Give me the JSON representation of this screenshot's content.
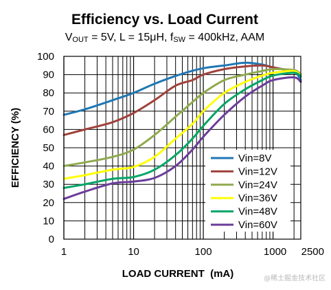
{
  "title": "Efficiency vs. Load Current",
  "subtitle": {
    "v_main": "V",
    "v_sub": "OUT",
    "mid": " = 5V, L = 15μH, f",
    "f_sub": "SW",
    "end": " = 400kHz, AAM"
  },
  "watermark": "@稀土掘金技术社区",
  "colors": {
    "grid": "#000000",
    "Vin=8V": "#1f77b4",
    "Vin=12V": "#a0413b",
    "Vin=24V": "#8faa4d",
    "Vin=36V": "#ffff00",
    "Vin=48V": "#00a566",
    "Vin=60V": "#6a3d9a"
  },
  "chart_data": {
    "type": "line",
    "xscale": "log",
    "xlim": [
      1,
      2500
    ],
    "ylim": [
      0,
      100
    ],
    "grid": true,
    "legend_position": "bottom-right",
    "xlabel": "LOAD CURRENT  (mA)",
    "ylabel": "EFFICIENCY   (%)",
    "x_tick_labels": [
      "1",
      "10",
      "100",
      "1000",
      "2500"
    ],
    "x_ticks": [
      1,
      10,
      100,
      1000,
      2500
    ],
    "y_ticks": [
      0,
      10,
      20,
      30,
      40,
      50,
      60,
      70,
      80,
      90,
      100
    ],
    "series": [
      {
        "name": "Vin=8V",
        "x": [
          1,
          2,
          5,
          10,
          20,
          50,
          100,
          200,
          400,
          700,
          1000,
          2000,
          2500
        ],
        "y": [
          68,
          71,
          76,
          80,
          85,
          90.5,
          93.5,
          95,
          96.5,
          95.5,
          94,
          91.5,
          87
        ]
      },
      {
        "name": "Vin=12V",
        "x": [
          1,
          2,
          5,
          10,
          20,
          40,
          70,
          100,
          200,
          400,
          700,
          1000,
          2000,
          2500
        ],
        "y": [
          57,
          60,
          64,
          69,
          76,
          84,
          87,
          90,
          93,
          94.5,
          95,
          94,
          91.5,
          89
        ]
      },
      {
        "name": "Vin=24V",
        "x": [
          1,
          2,
          5,
          10,
          20,
          40,
          70,
          100,
          200,
          400,
          700,
          1000,
          2000,
          2500
        ],
        "y": [
          40,
          42,
          45,
          49,
          57,
          67,
          75,
          80,
          87,
          90,
          92,
          93,
          92.5,
          90
        ]
      },
      {
        "name": "Vin=36V",
        "x": [
          1,
          2,
          5,
          10,
          20,
          40,
          70,
          100,
          200,
          400,
          700,
          1000,
          2000,
          2500
        ],
        "y": [
          33,
          35,
          38,
          39.5,
          45,
          55,
          63,
          70,
          80,
          86,
          89.5,
          91,
          92,
          89
        ]
      },
      {
        "name": "Vin=48V",
        "x": [
          1,
          2,
          5,
          10,
          20,
          40,
          70,
          100,
          200,
          400,
          700,
          1000,
          2000,
          2500
        ],
        "y": [
          28,
          30,
          33,
          34,
          38,
          46,
          55,
          62,
          74,
          82,
          87,
          89.5,
          91,
          89
        ]
      },
      {
        "name": "Vin=60V",
        "x": [
          1,
          2,
          5,
          10,
          20,
          40,
          70,
          100,
          200,
          400,
          700,
          1000,
          2000,
          2500
        ],
        "y": [
          22,
          26,
          30.5,
          31.5,
          33.5,
          40,
          49,
          56,
          68,
          78,
          84,
          87,
          88.5,
          86
        ]
      }
    ]
  }
}
